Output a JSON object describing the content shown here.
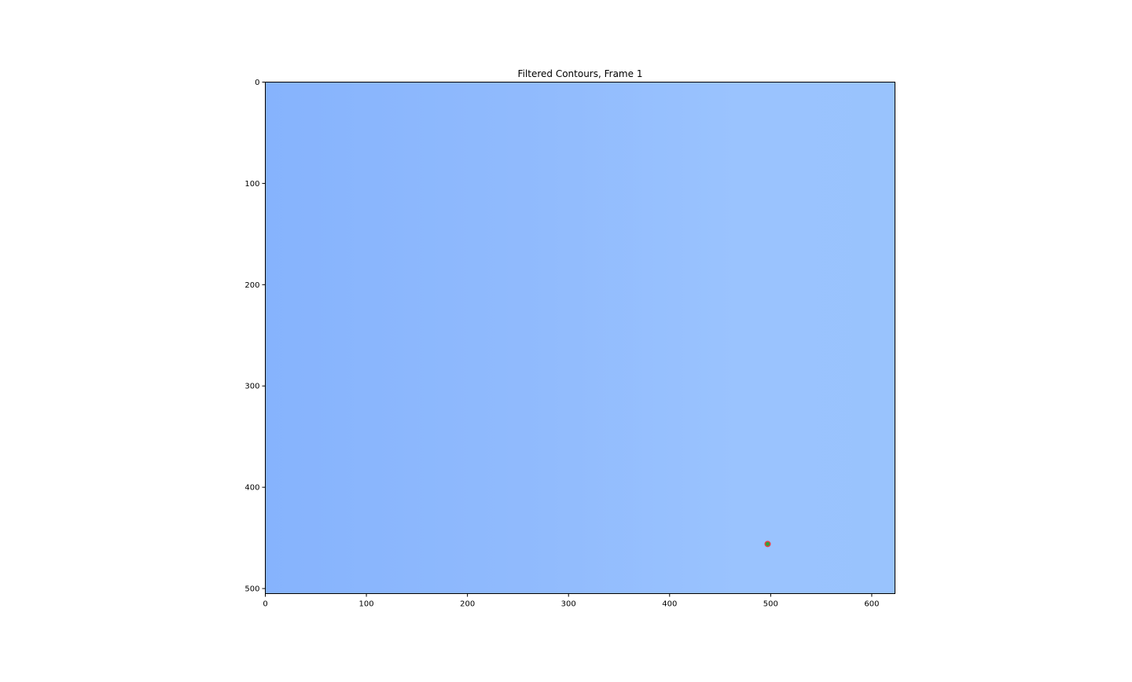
{
  "chart_data": {
    "type": "scatter",
    "title": "Filtered Contours, Frame 1",
    "xlabel": "",
    "ylabel": "",
    "xlim": [
      0,
      623
    ],
    "ylim": [
      505,
      0
    ],
    "x_ticks": [
      0,
      100,
      200,
      300,
      400,
      500,
      600
    ],
    "y_ticks": [
      0,
      100,
      200,
      300,
      400,
      500
    ],
    "grid": false,
    "image": {
      "description_colors": [
        "#86b3fd",
        "#91bbfd",
        "#9ac3fe",
        "#99c3fd"
      ]
    },
    "series": [
      {
        "points": [
          {
            "x": 497,
            "y": 456
          }
        ],
        "colors": {
          "ring": "#e8413c",
          "fill": "#2aa63a"
        }
      }
    ]
  }
}
